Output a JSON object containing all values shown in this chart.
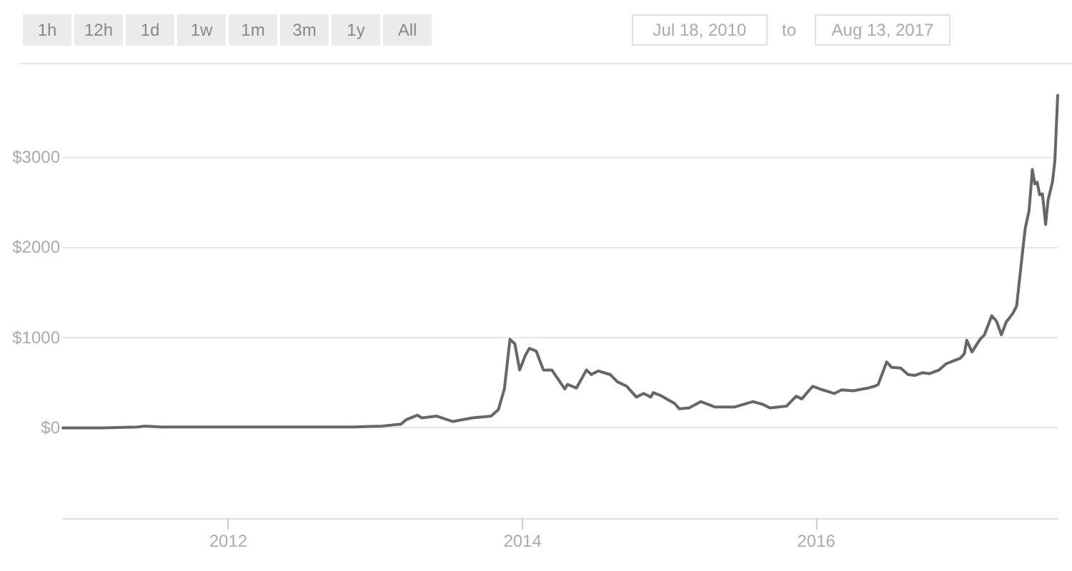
{
  "chart_data": {
    "type": "line",
    "annotations": [
      "1h",
      "12h",
      "1d",
      "1w",
      "1m",
      "3m",
      "1y",
      "All",
      "Jul 18, 2010",
      "to",
      "Aug 13, 2017"
    ],
    "x": [
      "2010-11-16",
      "2011-02-24",
      "2011-05-19",
      "2011-06-09",
      "2011-07-20",
      "2011-10-01",
      "2012-01-01",
      "2012-07-01",
      "2012-11-06",
      "2013-01-18",
      "2013-03-05",
      "2013-03-18",
      "2013-04-15",
      "2013-04-26",
      "2013-06-01",
      "2013-07-12",
      "2013-08-29",
      "2013-10-15",
      "2013-11-02",
      "2013-11-17",
      "2013-12-01",
      "2013-12-13",
      "2013-12-25",
      "2014-01-08",
      "2014-01-18",
      "2014-02-04",
      "2014-02-22",
      "2014-03-15",
      "2014-04-16",
      "2014-04-23",
      "2014-05-15",
      "2014-06-09",
      "2014-06-21",
      "2014-07-08",
      "2014-08-07",
      "2014-08-25",
      "2014-09-17",
      "2014-10-11",
      "2014-10-29",
      "2014-11-16",
      "2014-11-22",
      "2014-12-09",
      "2015-01-14",
      "2015-01-26",
      "2015-02-19",
      "2015-03-20",
      "2015-04-25",
      "2015-06-11",
      "2015-07-28",
      "2015-08-21",
      "2015-09-08",
      "2015-10-19",
      "2015-11-12",
      "2015-11-26",
      "2015-12-23",
      "2016-01-10",
      "2016-02-15",
      "2016-03-04",
      "2016-04-02",
      "2016-05-08",
      "2016-05-25",
      "2016-06-03",
      "2016-06-24",
      "2016-07-06",
      "2016-07-29",
      "2016-08-16",
      "2016-09-03",
      "2016-09-21",
      "2016-10-09",
      "2016-11-01",
      "2016-11-19",
      "2016-12-24",
      "2017-01-03",
      "2017-01-09",
      "2017-01-22",
      "2017-02-11",
      "2017-02-22",
      "2017-03-12",
      "2017-03-24",
      "2017-04-05",
      "2017-04-17",
      "2017-05-04",
      "2017-05-13",
      "2017-05-22",
      "2017-06-03",
      "2017-06-13",
      "2017-06-21",
      "2017-06-27",
      "2017-07-03",
      "2017-07-09",
      "2017-07-16",
      "2017-07-24",
      "2017-07-30",
      "2017-08-10",
      "2017-08-16",
      "2017-08-23"
    ],
    "values": [
      0,
      0,
      10,
      20,
      10,
      10,
      10,
      10,
      10,
      20,
      40,
      90,
      140,
      110,
      130,
      70,
      110,
      130,
      200,
      430,
      980,
      930,
      640,
      800,
      880,
      850,
      640,
      640,
      430,
      480,
      440,
      640,
      590,
      630,
      590,
      510,
      460,
      340,
      380,
      340,
      390,
      360,
      270,
      210,
      220,
      290,
      230,
      230,
      290,
      260,
      220,
      240,
      350,
      320,
      460,
      430,
      380,
      420,
      410,
      440,
      460,
      480,
      730,
      670,
      660,
      590,
      580,
      610,
      600,
      640,
      710,
      770,
      820,
      970,
      840,
      980,
      1030,
      1240,
      1180,
      1030,
      1170,
      1270,
      1350,
      1720,
      2200,
      2410,
      2860,
      2700,
      2720,
      2580,
      2590,
      2250,
      2520,
      2720,
      2960,
      3680
    ],
    "color": "#666666",
    "xlim": [
      "2010-11-16",
      "2017-08-23"
    ],
    "ylim": [
      -1000,
      4040
    ],
    "xticks": [
      "2012",
      "2014",
      "2016"
    ],
    "yticks": [
      {
        "value": 0,
        "label": "$0"
      },
      {
        "value": 1000,
        "label": "$1000"
      },
      {
        "value": 2000,
        "label": "$2000"
      },
      {
        "value": 3000,
        "label": "$3000"
      }
    ],
    "grid": "y"
  }
}
